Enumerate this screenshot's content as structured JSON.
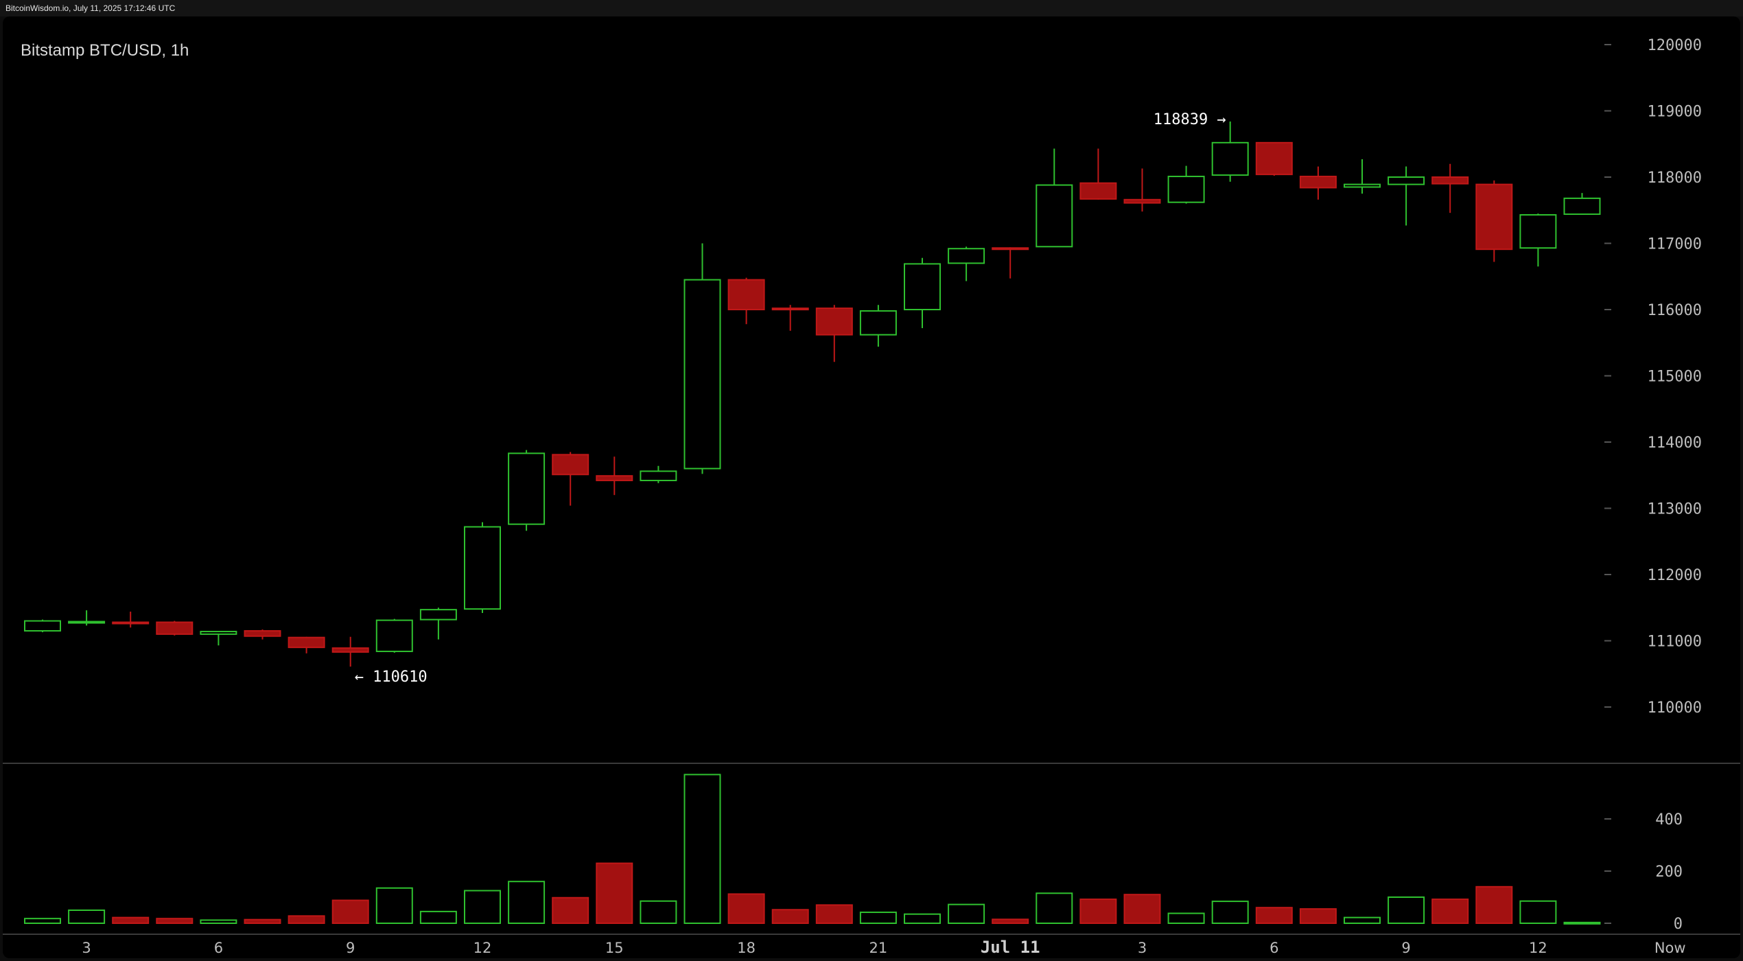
{
  "header": {
    "text": "BitcoinWisdom.io, July 11, 2025 17:12:46 UTC"
  },
  "chart_data": {
    "type": "candlestick",
    "title": "Bitstamp BTC/USD, 1h",
    "y_ticks": [
      110000,
      111000,
      112000,
      113000,
      114000,
      115000,
      116000,
      117000,
      118000,
      119000,
      120000
    ],
    "ylim": [
      109000,
      120500
    ],
    "volume_ticks": [
      0,
      200,
      400
    ],
    "volume_ylim": [
      0,
      600
    ],
    "x_labels": [
      "3",
      "6",
      "9",
      "12",
      "15",
      "18",
      "21",
      "Jul 11",
      "3",
      "6",
      "9",
      "12",
      "Now"
    ],
    "x_label_index": [
      1,
      4,
      7,
      10,
      13,
      16,
      19,
      22,
      25,
      28,
      31,
      34,
      37
    ],
    "candles": [
      {
        "o": 111150,
        "h": 111320,
        "l": 111130,
        "c": 111300,
        "v": 18
      },
      {
        "o": 111270,
        "h": 111460,
        "l": 111230,
        "c": 111290,
        "v": 50
      },
      {
        "o": 111280,
        "h": 111440,
        "l": 111200,
        "c": 111270,
        "v": 22
      },
      {
        "o": 111280,
        "h": 111300,
        "l": 111080,
        "c": 111100,
        "v": 18
      },
      {
        "o": 111100,
        "h": 111150,
        "l": 110930,
        "c": 111140,
        "v": 12
      },
      {
        "o": 111150,
        "h": 111170,
        "l": 111020,
        "c": 111070,
        "v": 14
      },
      {
        "o": 111050,
        "h": 111060,
        "l": 110810,
        "c": 110900,
        "v": 28
      },
      {
        "o": 110890,
        "h": 111060,
        "l": 110610,
        "c": 110830,
        "v": 88
      },
      {
        "o": 110840,
        "h": 111330,
        "l": 110820,
        "c": 111310,
        "v": 135
      },
      {
        "o": 111320,
        "h": 111500,
        "l": 111020,
        "c": 111470,
        "v": 45
      },
      {
        "o": 111480,
        "h": 112790,
        "l": 111420,
        "c": 112720,
        "v": 125
      },
      {
        "o": 112760,
        "h": 113880,
        "l": 112660,
        "c": 113830,
        "v": 160
      },
      {
        "o": 113810,
        "h": 113850,
        "l": 113040,
        "c": 113510,
        "v": 98
      },
      {
        "o": 113490,
        "h": 113780,
        "l": 113200,
        "c": 113420,
        "v": 230
      },
      {
        "o": 113420,
        "h": 113640,
        "l": 113380,
        "c": 113560,
        "v": 85
      },
      {
        "o": 113600,
        "h": 117000,
        "l": 113520,
        "c": 116450,
        "v": 570
      },
      {
        "o": 116450,
        "h": 116480,
        "l": 115780,
        "c": 116000,
        "v": 112
      },
      {
        "o": 116020,
        "h": 116070,
        "l": 115680,
        "c": 116010,
        "v": 52
      },
      {
        "o": 116020,
        "h": 116070,
        "l": 115210,
        "c": 115620,
        "v": 70
      },
      {
        "o": 115620,
        "h": 116070,
        "l": 115440,
        "c": 115980,
        "v": 42
      },
      {
        "o": 116000,
        "h": 116780,
        "l": 115720,
        "c": 116690,
        "v": 35
      },
      {
        "o": 116700,
        "h": 116950,
        "l": 116430,
        "c": 116920,
        "v": 72
      },
      {
        "o": 116930,
        "h": 116940,
        "l": 116470,
        "c": 116920,
        "v": 15
      },
      {
        "o": 116950,
        "h": 118430,
        "l": 116950,
        "c": 117880,
        "v": 115
      },
      {
        "o": 117910,
        "h": 118430,
        "l": 117660,
        "c": 117670,
        "v": 92
      },
      {
        "o": 117660,
        "h": 118130,
        "l": 117480,
        "c": 117610,
        "v": 110
      },
      {
        "o": 117620,
        "h": 118170,
        "l": 117600,
        "c": 118010,
        "v": 38
      },
      {
        "o": 118030,
        "h": 118839,
        "l": 117930,
        "c": 118520,
        "v": 84
      },
      {
        "o": 118520,
        "h": 118520,
        "l": 118020,
        "c": 118040,
        "v": 60
      },
      {
        "o": 118010,
        "h": 118160,
        "l": 117660,
        "c": 117840,
        "v": 55
      },
      {
        "o": 117850,
        "h": 118270,
        "l": 117750,
        "c": 117890,
        "v": 22
      },
      {
        "o": 117890,
        "h": 118160,
        "l": 117270,
        "c": 118000,
        "v": 100
      },
      {
        "o": 118000,
        "h": 118200,
        "l": 117460,
        "c": 117900,
        "v": 92
      },
      {
        "o": 117890,
        "h": 117950,
        "l": 116720,
        "c": 116910,
        "v": 140
      },
      {
        "o": 116930,
        "h": 117450,
        "l": 116650,
        "c": 117430,
        "v": 85
      },
      {
        "o": 117440,
        "h": 117760,
        "l": 117430,
        "c": 117680,
        "v": 3
      }
    ],
    "annotations": [
      {
        "text": "118839 →",
        "price": 118839,
        "index": 27
      },
      {
        "text": "← 110610",
        "price": 110610,
        "index": 7
      }
    ]
  },
  "colors": {
    "up": "#2fc12f",
    "down": "#a31111",
    "down_border": "#c01818",
    "grid_tick": "#555555",
    "divider": "#3a3a3a"
  }
}
